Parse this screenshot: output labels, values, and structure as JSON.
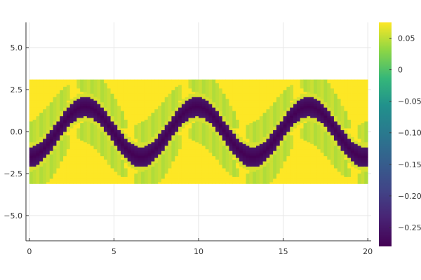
{
  "chart_data": {
    "type": "heatmap",
    "title": "",
    "xlabel": "",
    "ylabel": "",
    "xlim": [
      -0.2,
      20.2
    ],
    "ylim": [
      -6.5,
      6.5
    ],
    "grid": true,
    "legend": "none",
    "colormap": "viridis",
    "x_ticks": [
      0,
      5,
      10,
      15,
      20
    ],
    "x_tick_labels": [
      "0",
      "5",
      "10",
      "15",
      "20"
    ],
    "y_ticks": [
      5,
      2.5,
      0,
      -2.5,
      -5
    ],
    "y_tick_labels": [
      "5.0",
      "2.5",
      "0.0",
      "−2.5",
      "−5.0"
    ],
    "field": {
      "x_range": [
        0,
        20
      ],
      "y_range": [
        -3.1,
        3.1
      ],
      "nx": 100,
      "ny": 60,
      "background_value": 0.08,
      "band": {
        "value": -0.28,
        "half_width": 0.6,
        "center_amplitude": 1.5,
        "center_period": 6.6,
        "center_phase_x": 1.65
      },
      "lobe_value": 0.05
    },
    "colorbar": {
      "range": [
        -0.28,
        0.075
      ],
      "ticks": [
        0.05,
        0,
        -0.05,
        -0.1,
        -0.15,
        -0.2,
        -0.25
      ],
      "tick_labels": [
        "0.05",
        "0",
        "−0.05",
        "−0.10",
        "−0.15",
        "−0.20",
        "−0.25"
      ]
    }
  }
}
